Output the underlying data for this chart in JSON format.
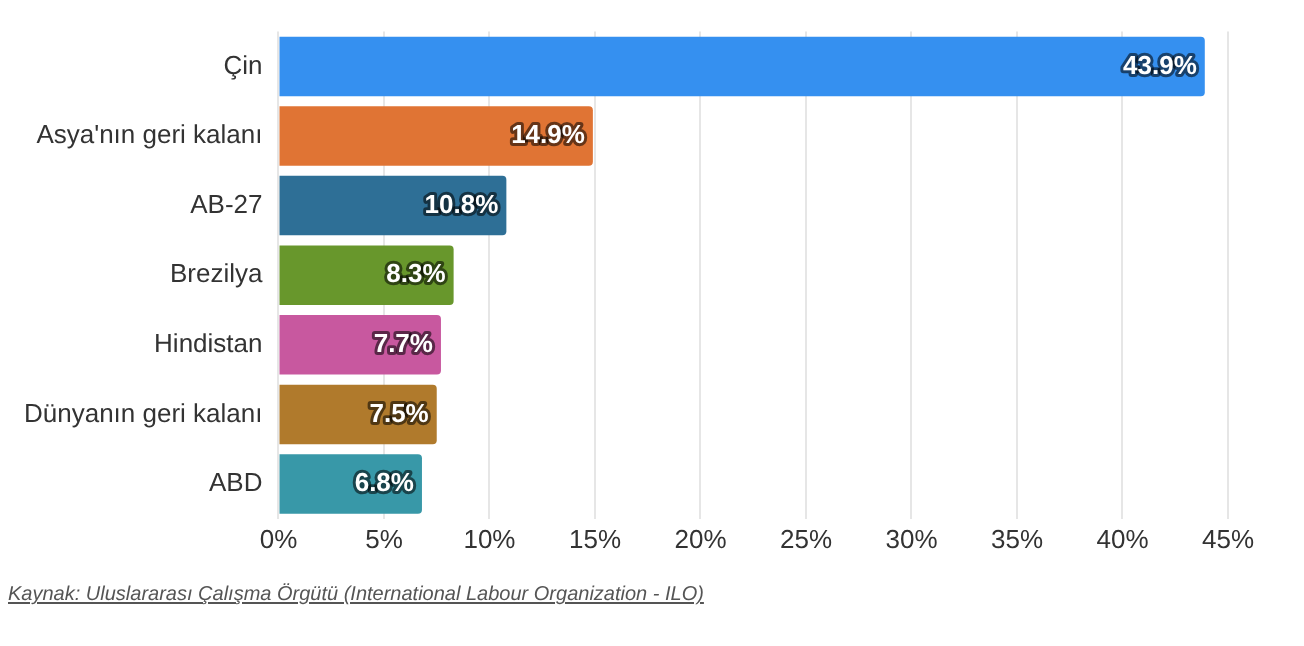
{
  "chart_data": {
    "type": "bar",
    "orientation": "horizontal",
    "categories": [
      "Çin",
      "Asya'nın geri kalanı",
      "AB-27",
      "Brezilya",
      "Hindistan",
      "Dünyanın geri kalanı",
      "ABD"
    ],
    "values": [
      43.9,
      14.9,
      10.8,
      8.3,
      7.7,
      7.5,
      6.8
    ],
    "colors": [
      "#3590f0",
      "#e07434",
      "#2e6f96",
      "#68972c",
      "#c8589f",
      "#b07a2c",
      "#3898a8"
    ],
    "value_labels": [
      "43.9%",
      "14.9%",
      "10.8%",
      "8.3%",
      "7.7%",
      "7.5%",
      "6.8%"
    ],
    "xlim": [
      0,
      45
    ],
    "xticks": [
      {
        "value": 0,
        "label": "0%"
      },
      {
        "value": 5,
        "label": "5%"
      },
      {
        "value": 10,
        "label": "10%"
      },
      {
        "value": 15,
        "label": "15%"
      },
      {
        "value": 20,
        "label": "20%"
      },
      {
        "value": 25,
        "label": "25%"
      },
      {
        "value": 30,
        "label": "30%"
      },
      {
        "value": 35,
        "label": "35%"
      },
      {
        "value": 40,
        "label": "40%"
      },
      {
        "value": 45,
        "label": "45%"
      }
    ],
    "grid": "x",
    "legend": false,
    "annotations": [
      "Kaynak: Uluslararası Çalışma Örgütü (International Labour Organization - ILO)"
    ]
  }
}
